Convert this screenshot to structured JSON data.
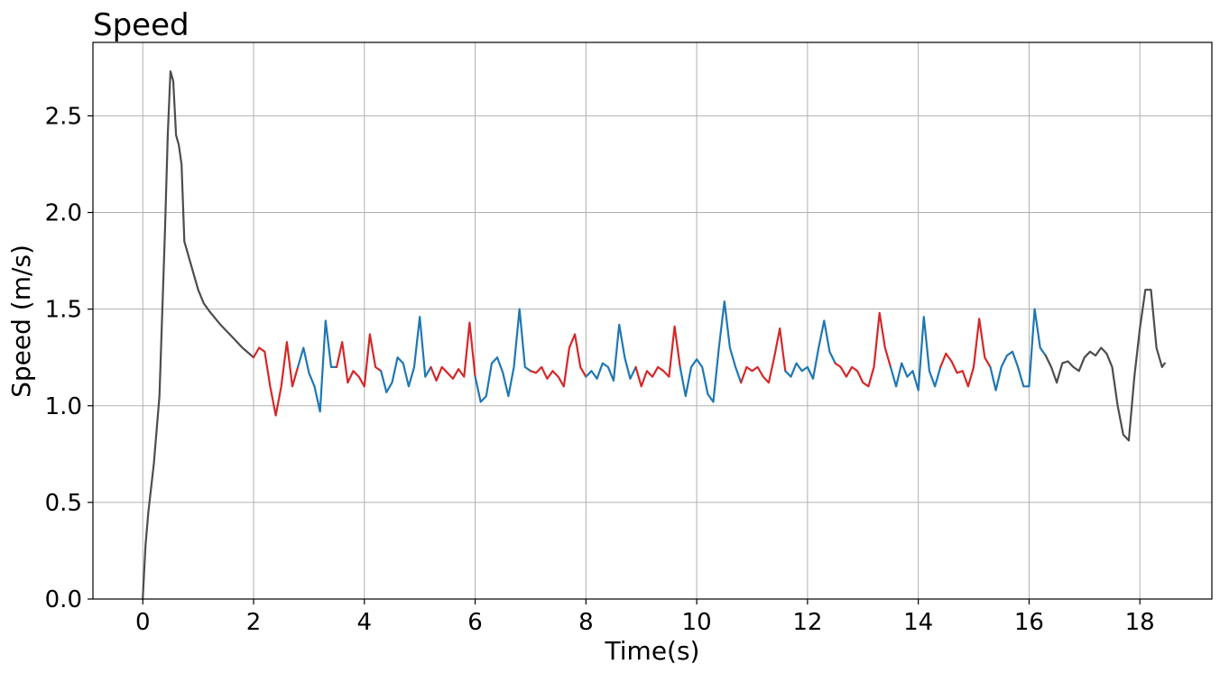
{
  "chart_data": {
    "type": "line",
    "title": "Speed",
    "xlabel": "Time(s)",
    "ylabel": "Speed (m/s)",
    "xlim": [
      -0.9,
      19.3
    ],
    "ylim": [
      0.0,
      2.88
    ],
    "xticks": [
      0,
      2,
      4,
      6,
      8,
      10,
      12,
      14,
      16,
      18
    ],
    "xtick_labels": [
      "0",
      "2",
      "4",
      "6",
      "8",
      "10",
      "12",
      "14",
      "16",
      "18"
    ],
    "yticks": [
      0.0,
      0.5,
      1.0,
      1.5,
      2.0,
      2.5
    ],
    "ytick_labels": [
      "0.0",
      "0.5",
      "1.0",
      "1.5",
      "2.0",
      "2.5"
    ],
    "grid": true,
    "colors": {
      "lead": "#4d4d4d",
      "red": "#d62728",
      "blue": "#1f77b4",
      "grid": "#b0b0b0"
    },
    "segments": [
      {
        "color": "lead",
        "x": [
          0,
          0.05,
          0.1,
          0.2,
          0.3,
          0.4,
          0.45,
          0.5,
          0.55,
          0.6,
          0.65,
          0.7,
          0.75,
          0.8,
          0.85,
          0.9,
          1.0,
          1.1,
          1.2,
          1.4,
          1.6,
          1.8,
          2.0
        ],
        "y": [
          0,
          0.28,
          0.45,
          0.7,
          1.05,
          1.9,
          2.4,
          2.73,
          2.68,
          2.4,
          2.35,
          2.25,
          1.85,
          1.8,
          1.75,
          1.7,
          1.6,
          1.53,
          1.49,
          1.42,
          1.36,
          1.3,
          1.25
        ]
      },
      {
        "color": "red",
        "x": [
          2.0,
          2.1,
          2.2,
          2.3,
          2.4,
          2.5,
          2.6,
          2.7,
          2.8
        ],
        "y": [
          1.25,
          1.3,
          1.28,
          1.1,
          0.95,
          1.1,
          1.33,
          1.1,
          1.2
        ]
      },
      {
        "color": "blue",
        "x": [
          2.8,
          2.9,
          3.0,
          3.1,
          3.2,
          3.3,
          3.4,
          3.5
        ],
        "y": [
          1.2,
          1.3,
          1.17,
          1.1,
          0.97,
          1.44,
          1.2,
          1.2
        ]
      },
      {
        "color": "red",
        "x": [
          3.5,
          3.6,
          3.7,
          3.8,
          3.9,
          4.0,
          4.1,
          4.2,
          4.3
        ],
        "y": [
          1.2,
          1.33,
          1.12,
          1.18,
          1.15,
          1.1,
          1.37,
          1.2,
          1.18
        ]
      },
      {
        "color": "blue",
        "x": [
          4.3,
          4.4,
          4.5,
          4.6,
          4.7,
          4.8,
          4.9,
          5.0,
          5.1,
          5.2
        ],
        "y": [
          1.18,
          1.07,
          1.12,
          1.25,
          1.22,
          1.1,
          1.2,
          1.46,
          1.15,
          1.2
        ]
      },
      {
        "color": "red",
        "x": [
          5.2,
          5.3,
          5.4,
          5.5,
          5.6,
          5.7,
          5.8,
          5.9,
          6.0
        ],
        "y": [
          1.2,
          1.13,
          1.2,
          1.17,
          1.14,
          1.19,
          1.15,
          1.43,
          1.15
        ]
      },
      {
        "color": "blue",
        "x": [
          6.0,
          6.1,
          6.2,
          6.3,
          6.4,
          6.5,
          6.6,
          6.7,
          6.8,
          6.9,
          7.0
        ],
        "y": [
          1.15,
          1.02,
          1.05,
          1.22,
          1.25,
          1.17,
          1.05,
          1.2,
          1.5,
          1.2,
          1.18
        ]
      },
      {
        "color": "red",
        "x": [
          7.0,
          7.1,
          7.2,
          7.3,
          7.4,
          7.5,
          7.6,
          7.7,
          7.8,
          7.9,
          8.0
        ],
        "y": [
          1.18,
          1.17,
          1.2,
          1.14,
          1.18,
          1.15,
          1.1,
          1.3,
          1.37,
          1.2,
          1.15
        ]
      },
      {
        "color": "blue",
        "x": [
          8.0,
          8.1,
          8.2,
          8.3,
          8.4,
          8.5,
          8.6,
          8.7,
          8.8,
          8.9
        ],
        "y": [
          1.15,
          1.18,
          1.14,
          1.22,
          1.2,
          1.13,
          1.42,
          1.25,
          1.14,
          1.2
        ]
      },
      {
        "color": "red",
        "x": [
          8.9,
          9.0,
          9.1,
          9.2,
          9.3,
          9.4,
          9.5,
          9.6,
          9.7
        ],
        "y": [
          1.2,
          1.1,
          1.18,
          1.15,
          1.2,
          1.18,
          1.15,
          1.41,
          1.2
        ]
      },
      {
        "color": "blue",
        "x": [
          9.7,
          9.8,
          9.9,
          10.0,
          10.1,
          10.2,
          10.3,
          10.4,
          10.5,
          10.6,
          10.7,
          10.8
        ],
        "y": [
          1.2,
          1.05,
          1.2,
          1.24,
          1.2,
          1.06,
          1.02,
          1.3,
          1.54,
          1.3,
          1.2,
          1.12
        ]
      },
      {
        "color": "red",
        "x": [
          10.8,
          10.9,
          11.0,
          11.1,
          11.2,
          11.3,
          11.4,
          11.5,
          11.6
        ],
        "y": [
          1.12,
          1.2,
          1.18,
          1.2,
          1.15,
          1.12,
          1.25,
          1.4,
          1.18
        ]
      },
      {
        "color": "blue",
        "x": [
          11.6,
          11.7,
          11.8,
          11.9,
          12.0,
          12.1,
          12.2,
          12.3,
          12.4,
          12.5
        ],
        "y": [
          1.18,
          1.15,
          1.22,
          1.18,
          1.2,
          1.14,
          1.3,
          1.44,
          1.28,
          1.22
        ]
      },
      {
        "color": "red",
        "x": [
          12.5,
          12.6,
          12.7,
          12.8,
          12.9,
          13.0,
          13.1,
          13.2,
          13.3,
          13.4,
          13.5
        ],
        "y": [
          1.22,
          1.2,
          1.15,
          1.2,
          1.18,
          1.12,
          1.1,
          1.2,
          1.48,
          1.3,
          1.2
        ]
      },
      {
        "color": "blue",
        "x": [
          13.5,
          13.6,
          13.7,
          13.8,
          13.9,
          14.0,
          14.1,
          14.2,
          14.3,
          14.4
        ],
        "y": [
          1.2,
          1.1,
          1.22,
          1.15,
          1.18,
          1.08,
          1.46,
          1.18,
          1.1,
          1.2
        ]
      },
      {
        "color": "red",
        "x": [
          14.4,
          14.5,
          14.6,
          14.7,
          14.8,
          14.9,
          15.0,
          15.1,
          15.2,
          15.3
        ],
        "y": [
          1.2,
          1.27,
          1.23,
          1.17,
          1.18,
          1.1,
          1.2,
          1.45,
          1.25,
          1.2
        ]
      },
      {
        "color": "blue",
        "x": [
          15.3,
          15.4,
          15.5,
          15.6,
          15.7,
          15.8,
          15.9,
          16.0,
          16.1,
          16.2,
          16.3
        ],
        "y": [
          1.2,
          1.08,
          1.2,
          1.26,
          1.28,
          1.2,
          1.1,
          1.1,
          1.5,
          1.3,
          1.26
        ]
      },
      {
        "color": "lead",
        "x": [
          16.3,
          16.4,
          16.5,
          16.6,
          16.7,
          16.8,
          16.9,
          17.0,
          17.1,
          17.2,
          17.3,
          17.4,
          17.5,
          17.6,
          17.7,
          17.8,
          17.9,
          18.0,
          18.1,
          18.2,
          18.3,
          18.4,
          18.45
        ],
        "y": [
          1.26,
          1.2,
          1.12,
          1.22,
          1.23,
          1.2,
          1.18,
          1.25,
          1.28,
          1.26,
          1.3,
          1.27,
          1.2,
          1.0,
          0.85,
          0.82,
          1.15,
          1.4,
          1.6,
          1.6,
          1.3,
          1.2,
          1.22
        ]
      }
    ]
  }
}
